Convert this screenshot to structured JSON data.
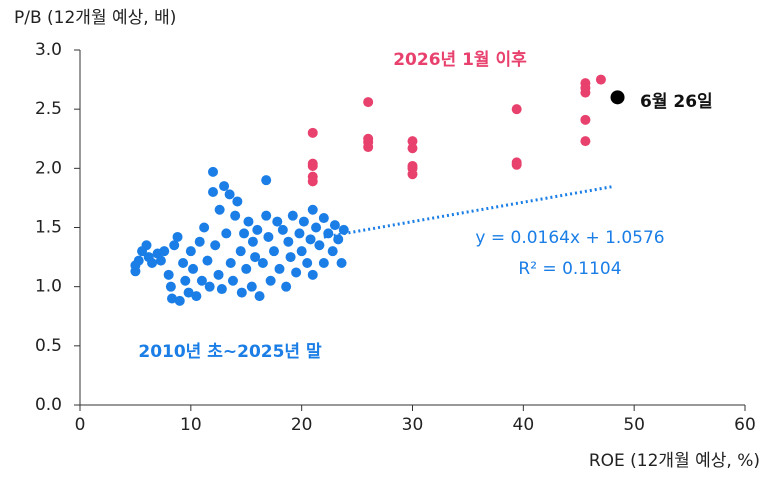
{
  "chart_data": {
    "type": "scatter",
    "y_axis_label": "P/B (12개월 예상, 배)",
    "x_axis_label": "ROE (12개월 예상, %)",
    "xlim": [
      0,
      60
    ],
    "ylim": [
      0,
      3
    ],
    "xticks": [
      0,
      10,
      20,
      30,
      40,
      50,
      60
    ],
    "yticks": [
      {
        "value": 0,
        "label": "0.0"
      },
      {
        "value": 0.5,
        "label": "0.5"
      },
      {
        "value": 1,
        "label": "1.0"
      },
      {
        "value": 1.5,
        "label": "1.5"
      },
      {
        "value": 2,
        "label": "2.0"
      },
      {
        "value": 2.5,
        "label": "2.5"
      },
      {
        "value": 3,
        "label": "3.0"
      }
    ],
    "series": [
      {
        "name": "2010년 초~2025년 말",
        "color": "#1a7ee6",
        "x": [
          5,
          5,
          5.3,
          5.6,
          6,
          6.2,
          6.5,
          7,
          7.3,
          7.6,
          8,
          8.2,
          8.3,
          8.5,
          8.8,
          9,
          9.3,
          9.5,
          9.8,
          10,
          10.2,
          10.5,
          10.8,
          11,
          11.2,
          11.5,
          11.7,
          12,
          12,
          12.2,
          12.5,
          12.6,
          12.8,
          13,
          13.2,
          13.5,
          13.6,
          13.8,
          14,
          14.2,
          14.5,
          14.6,
          14.8,
          15,
          15.2,
          15.5,
          15.6,
          15.8,
          16,
          16.2,
          16.5,
          16.8,
          16.8,
          17,
          17.2,
          17.5,
          17.8,
          18,
          18.3,
          18.6,
          18.8,
          19,
          19.2,
          19.5,
          19.8,
          20,
          20.2,
          20.5,
          20.8,
          21,
          21,
          21.3,
          21.6,
          22,
          22,
          22.4,
          22.8,
          23,
          23.3,
          23.6,
          23.8
        ],
        "values": [
          1.13,
          1.18,
          1.22,
          1.3,
          1.35,
          1.25,
          1.2,
          1.28,
          1.22,
          1.3,
          1.1,
          1.0,
          0.9,
          1.35,
          1.42,
          0.88,
          1.2,
          1.05,
          0.95,
          1.3,
          1.15,
          0.92,
          1.38,
          1.05,
          1.5,
          1.22,
          1.0,
          1.8,
          1.97,
          1.35,
          1.1,
          1.65,
          0.98,
          1.85,
          1.45,
          1.78,
          1.2,
          1.05,
          1.6,
          1.72,
          1.3,
          0.95,
          1.45,
          1.15,
          1.55,
          1.0,
          1.38,
          1.25,
          1.48,
          0.92,
          1.2,
          1.9,
          1.6,
          1.42,
          1.05,
          1.3,
          1.55,
          1.15,
          1.48,
          1.0,
          1.38,
          1.25,
          1.6,
          1.12,
          1.45,
          1.3,
          1.55,
          1.2,
          1.4,
          1.65,
          1.1,
          1.5,
          1.35,
          1.2,
          1.58,
          1.45,
          1.3,
          1.52,
          1.4,
          1.2,
          1.48
        ]
      },
      {
        "name": "2026년 1월 이후",
        "color": "#e8416e",
        "x": [
          21,
          21,
          21,
          21,
          21,
          26,
          26,
          26,
          26,
          30,
          30,
          30,
          30,
          30,
          39.4,
          39.4,
          39.4,
          45.6,
          45.6,
          45.6,
          45.6,
          45.6,
          47
        ],
        "values": [
          2.3,
          2.04,
          2.02,
          1.93,
          1.89,
          2.56,
          2.25,
          2.22,
          2.18,
          2.23,
          2.17,
          2.02,
          2.0,
          1.95,
          2.5,
          2.05,
          2.03,
          2.72,
          2.68,
          2.64,
          2.41,
          2.23,
          2.75
        ]
      },
      {
        "name": "6월 26일",
        "color": "#000000",
        "x": [
          48.5
        ],
        "values": [
          2.6
        ]
      }
    ],
    "trendline": {
      "equation": "y = 0.0164x + 1.0576",
      "r_squared": "R² = 0.1104",
      "slope": 0.0164,
      "intercept": 1.0576,
      "x": [
        22,
        48.2
      ],
      "color": "#1a7ee6"
    }
  }
}
